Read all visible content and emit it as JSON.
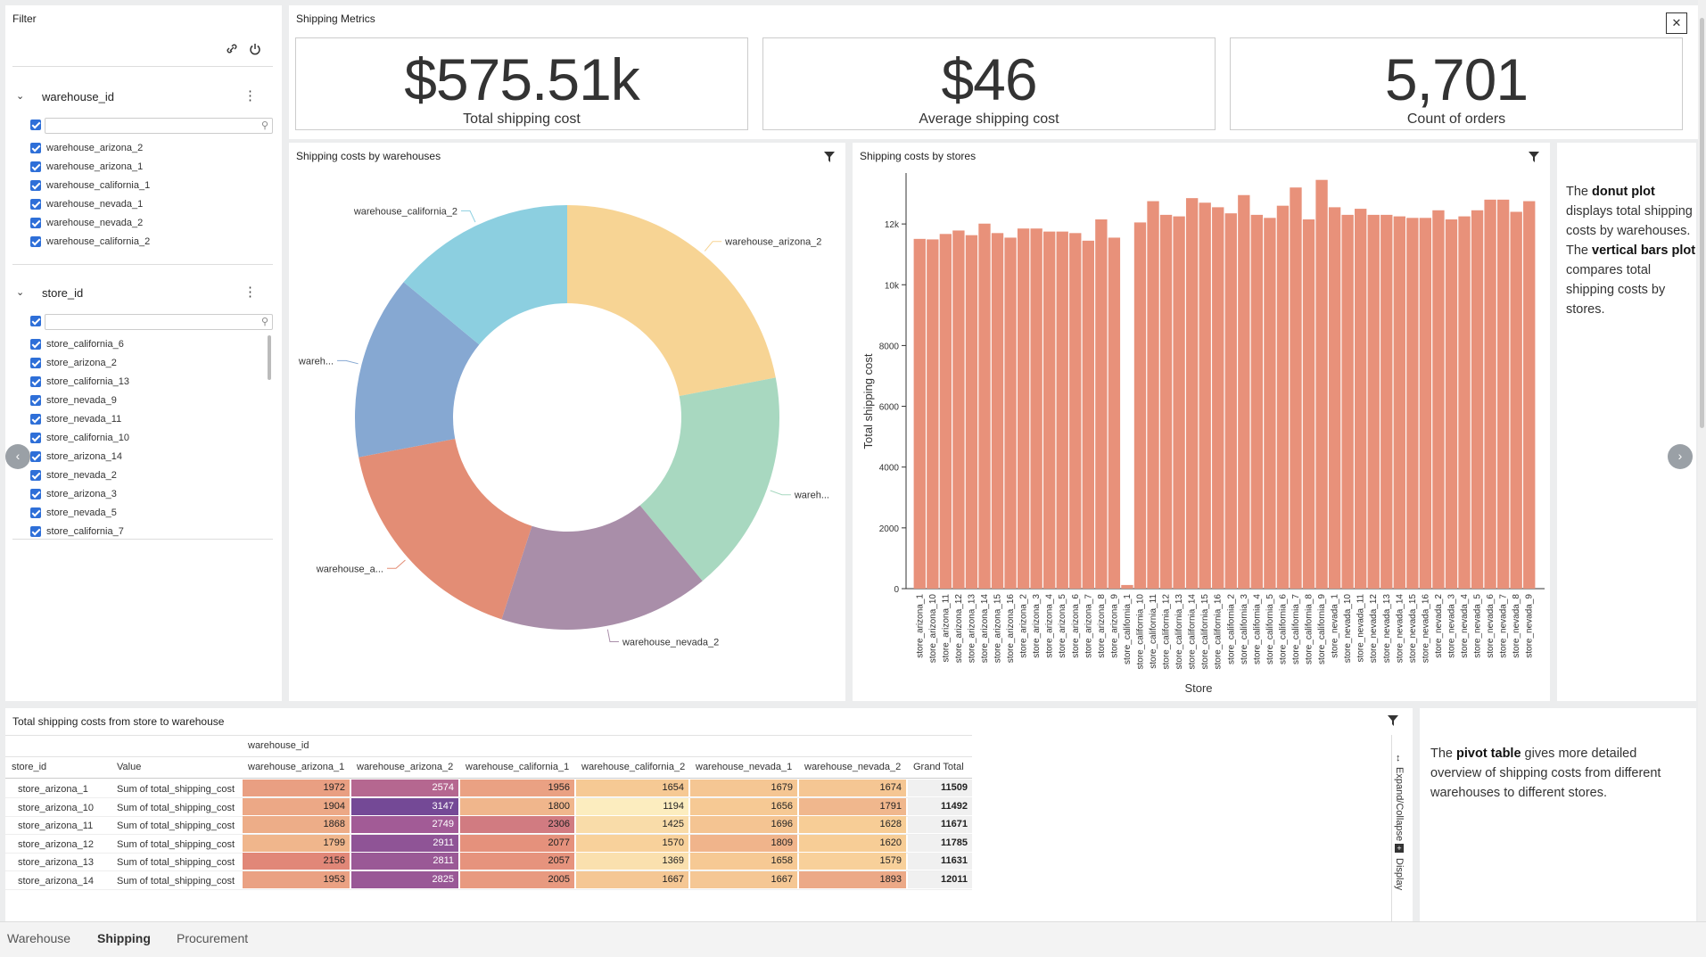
{
  "filter": {
    "title": "Filter",
    "warehouse": {
      "name": "warehouse_id",
      "items": [
        "warehouse_arizona_2",
        "warehouse_arizona_1",
        "warehouse_california_1",
        "warehouse_nevada_1",
        "warehouse_nevada_2",
        "warehouse_california_2"
      ]
    },
    "store": {
      "name": "store_id",
      "items": [
        "store_california_6",
        "store_arizona_2",
        "store_california_13",
        "store_nevada_9",
        "store_nevada_11",
        "store_california_10",
        "store_arizona_14",
        "store_nevada_2",
        "store_arizona_3",
        "store_nevada_5",
        "store_california_7"
      ]
    }
  },
  "metrics": {
    "title": "Shipping Metrics",
    "kpis": [
      {
        "value": "$575.51k",
        "label": "Total shipping cost"
      },
      {
        "value": "$46",
        "label": "Average shipping cost"
      },
      {
        "value": "5,701",
        "label": "Count of orders"
      }
    ]
  },
  "donut": {
    "title": "Shipping costs by warehouses",
    "chart_data": {
      "type": "pie",
      "labels": [
        "warehouse_arizona_2",
        "warehouse_nevada_1",
        "warehouse_nevada_2",
        "warehouse_arizona_1",
        "warehouse_california_1",
        "warehouse_california_2"
      ],
      "display_labels": [
        "warehouse_arizona_2",
        "wareh...",
        "warehouse_nevada_2",
        "warehouse_a...",
        "wareh...",
        "warehouse_california_2"
      ],
      "values": [
        22,
        17,
        16,
        17,
        14,
        14
      ],
      "colors": [
        "#f7d494",
        "#a8d8c0",
        "#a98ea9",
        "#e38d75",
        "#86a8d2",
        "#8ccfe0"
      ]
    }
  },
  "bars": {
    "title": "Shipping costs by stores",
    "chart_data": {
      "type": "bar",
      "xlabel": "Store",
      "ylabel": "Total shipping cost",
      "ylim": [
        0,
        13500
      ],
      "yticks": [
        0,
        2000,
        4000,
        6000,
        8000,
        10000,
        12000
      ],
      "ytick_labels": [
        "0",
        "2000",
        "4000",
        "6000",
        "8000",
        "10k",
        "12k"
      ],
      "categories": [
        "store_arizona_1",
        "store_arizona_10",
        "store_arizona_11",
        "store_arizona_12",
        "store_arizona_13",
        "store_arizona_14",
        "store_arizona_15",
        "store_arizona_16",
        "store_arizona_2",
        "store_arizona_3",
        "store_arizona_4",
        "store_arizona_5",
        "store_arizona_6",
        "store_arizona_7",
        "store_arizona_8",
        "store_arizona_9",
        "store_california_1",
        "store_california_10",
        "store_california_11",
        "store_california_12",
        "store_california_13",
        "store_california_14",
        "store_california_15",
        "store_california_16",
        "store_california_2",
        "store_california_3",
        "store_california_4",
        "store_california_5",
        "store_california_6",
        "store_california_7",
        "store_california_8",
        "store_california_9",
        "store_nevada_1",
        "store_nevada_10",
        "store_nevada_11",
        "store_nevada_12",
        "store_nevada_13",
        "store_nevada_14",
        "store_nevada_15",
        "store_nevada_16",
        "store_nevada_2",
        "store_nevada_3",
        "store_nevada_4",
        "store_nevada_5",
        "store_nevada_6",
        "store_nevada_7",
        "store_nevada_8",
        "store_nevada_9"
      ],
      "values": [
        11509,
        11492,
        11671,
        11785,
        11631,
        12011,
        11700,
        11550,
        11850,
        11850,
        11750,
        11750,
        11700,
        11450,
        12150,
        11550,
        120,
        12050,
        12750,
        12300,
        12250,
        12850,
        12700,
        12550,
        12350,
        12950,
        12300,
        12200,
        12600,
        13200,
        12150,
        13450,
        12550,
        12300,
        12500,
        12300,
        12300,
        12250,
        12200,
        12200,
        12450,
        12150,
        12250,
        12450,
        12800,
        12800,
        12400,
        12750
      ],
      "color": "#e8917a"
    }
  },
  "description1": {
    "t1": "The ",
    "b1": "donut plot",
    "t2": " displays total shipping costs by warehouses.",
    "t3": "The ",
    "b2": "vertical bars plot",
    "t4": " compares total shipping costs by stores."
  },
  "pivot": {
    "title": "Total shipping costs from store to warehouse",
    "group_header": "warehouse_id",
    "row_header": "store_id",
    "value_header": "Value",
    "columns": [
      "warehouse_arizona_1",
      "warehouse_arizona_2",
      "warehouse_california_1",
      "warehouse_california_2",
      "warehouse_nevada_1",
      "warehouse_nevada_2",
      "Grand Total"
    ],
    "rows": [
      {
        "store": "store_arizona_1",
        "value": "Sum of total_shipping_cost",
        "cells": [
          "1972",
          "2574",
          "1956",
          "1654",
          "1679",
          "1674",
          "11509"
        ]
      },
      {
        "store": "store_arizona_10",
        "value": "Sum of total_shipping_cost",
        "cells": [
          "1904",
          "3147",
          "1800",
          "1194",
          "1656",
          "1791",
          "11492"
        ]
      },
      {
        "store": "store_arizona_11",
        "value": "Sum of total_shipping_cost",
        "cells": [
          "1868",
          "2749",
          "2306",
          "1425",
          "1696",
          "1628",
          "11671"
        ]
      },
      {
        "store": "store_arizona_12",
        "value": "Sum of total_shipping_cost",
        "cells": [
          "1799",
          "2911",
          "2077",
          "1570",
          "1809",
          "1620",
          "11785"
        ]
      },
      {
        "store": "store_arizona_13",
        "value": "Sum of total_shipping_cost",
        "cells": [
          "2156",
          "2811",
          "2057",
          "1369",
          "1658",
          "1579",
          "11631"
        ]
      },
      {
        "store": "store_arizona_14",
        "value": "Sum of total_shipping_cost",
        "cells": [
          "1953",
          "2825",
          "2005",
          "1667",
          "1667",
          "1893",
          "12011"
        ]
      }
    ],
    "side_labels": [
      "Expand/Collapse",
      "Display"
    ]
  },
  "description2": {
    "t1": "The ",
    "b1": "pivot table",
    "t2": " gives more detailed overview of shipping costs from different warehouses to different stores."
  },
  "tabs": [
    "Warehouse",
    "Shipping",
    "Procurement"
  ],
  "active_tab": "Shipping"
}
